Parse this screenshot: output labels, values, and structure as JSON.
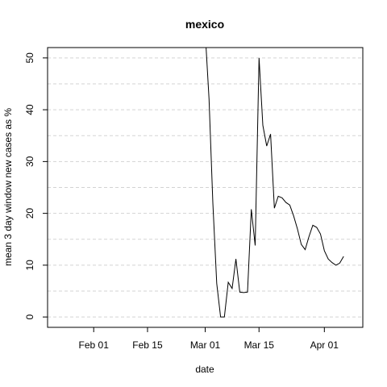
{
  "chart_data": {
    "type": "line",
    "title": "mexico",
    "xlabel": "date",
    "ylabel": "mean  3  day window new cases as %",
    "x_ticks": [
      "Feb 01",
      "Feb 15",
      "Mar 01",
      "Mar 15",
      "Apr 01"
    ],
    "y_ticks": [
      "0",
      "10",
      "20",
      "30",
      "40",
      "50"
    ],
    "xlim": [
      "2020-01-20",
      "2020-04-11"
    ],
    "ylim": [
      -2,
      52
    ],
    "grid": "horizontal dashed",
    "series": [
      {
        "x": [
          "2020-03-01",
          "2020-03-02",
          "2020-03-03",
          "2020-03-04",
          "2020-03-05",
          "2020-03-06",
          "2020-03-07",
          "2020-03-08",
          "2020-03-09",
          "2020-03-10",
          "2020-03-11",
          "2020-03-12",
          "2020-03-13",
          "2020-03-14",
          "2020-03-15",
          "2020-03-16",
          "2020-03-17",
          "2020-03-18",
          "2020-03-19",
          "2020-03-20",
          "2020-03-21",
          "2020-03-22",
          "2020-03-23",
          "2020-03-24",
          "2020-03-25",
          "2020-03-26",
          "2020-03-27",
          "2020-03-28",
          "2020-03-29",
          "2020-03-30",
          "2020-03-31",
          "2020-04-01",
          "2020-04-02",
          "2020-04-03",
          "2020-04-04",
          "2020-04-05",
          "2020-04-06"
        ],
        "y": [
          55,
          42,
          22,
          6.5,
          0,
          0,
          6.7,
          5.5,
          11.2,
          4.8,
          4.7,
          4.8,
          20.8,
          13.8,
          50,
          37,
          33,
          35.3,
          21,
          23.3,
          23,
          22.1,
          21.6,
          19.5,
          17,
          14,
          13,
          15.5,
          17.7,
          17.3,
          16,
          12.8,
          11.2,
          10.5,
          10,
          10.4,
          11.7
        ]
      }
    ]
  }
}
